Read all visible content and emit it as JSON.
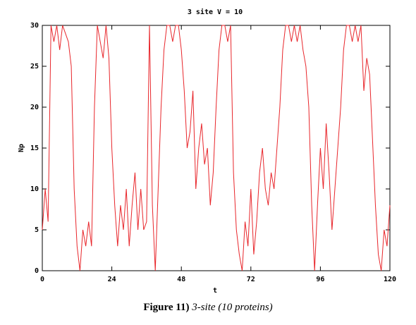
{
  "chart_data": {
    "type": "line",
    "title": "3 site V = 10",
    "x_label": "t",
    "y_label": "Np",
    "x": [
      0,
      1,
      2,
      3,
      4,
      5,
      6,
      7,
      8,
      9,
      10,
      11,
      12,
      13,
      14,
      15,
      16,
      17,
      18,
      19,
      20,
      21,
      22,
      23,
      24,
      25,
      26,
      27,
      28,
      29,
      30,
      31,
      32,
      33,
      34,
      35,
      36,
      37,
      38,
      39,
      40,
      41,
      42,
      43,
      44,
      45,
      46,
      47,
      48,
      49,
      50,
      51,
      52,
      53,
      54,
      55,
      56,
      57,
      58,
      59,
      60,
      61,
      62,
      63,
      64,
      65,
      66,
      67,
      68,
      69,
      70,
      71,
      72,
      73,
      74,
      75,
      76,
      77,
      78,
      79,
      80,
      81,
      82,
      83,
      84,
      85,
      86,
      87,
      88,
      89,
      90,
      91,
      92,
      93,
      94,
      95,
      96,
      97,
      98,
      99,
      100,
      101,
      102,
      103,
      104,
      105,
      106,
      107,
      108,
      109,
      110,
      111,
      112,
      113,
      114,
      115,
      116,
      117,
      118,
      119,
      120
    ],
    "series": [
      {
        "color": "#e8262b",
        "values": [
          5,
          10,
          6,
          30,
          28,
          30,
          27,
          30,
          29,
          28,
          25,
          10,
          3,
          0,
          5,
          3,
          6,
          3,
          20,
          30,
          28,
          26,
          30,
          26,
          15,
          8,
          3,
          8,
          5,
          10,
          3,
          8,
          12,
          5,
          10,
          5,
          6,
          30,
          8,
          0,
          10,
          20,
          27,
          30,
          30,
          28,
          30,
          30,
          27,
          22,
          15,
          17,
          22,
          10,
          15,
          18,
          13,
          15,
          8,
          12,
          20,
          27,
          30,
          30,
          28,
          30,
          12,
          5,
          2,
          0,
          6,
          3,
          10,
          2,
          6,
          12,
          15,
          10,
          8,
          12,
          10,
          15,
          20,
          27,
          30,
          30,
          28,
          30,
          28,
          30,
          27,
          25,
          20,
          8,
          0,
          8,
          15,
          10,
          18,
          12,
          5,
          10,
          15,
          20,
          27,
          30,
          30,
          28,
          30,
          28,
          30,
          22,
          26,
          24,
          16,
          8,
          2,
          0,
          5,
          3,
          8
        ]
      }
    ],
    "xlim": [
      0,
      120
    ],
    "ylim": [
      0,
      30
    ],
    "xticks": [
      0,
      24,
      48,
      72,
      96,
      120
    ],
    "yticks": [
      0,
      5,
      10,
      15,
      20,
      25,
      30
    ]
  },
  "caption": {
    "label": "Figure 11)",
    "text": "3-site (10 proteins)"
  }
}
